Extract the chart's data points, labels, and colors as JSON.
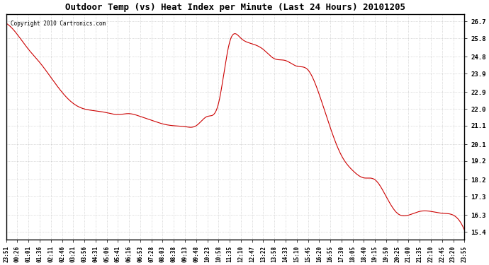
{
  "title": "Outdoor Temp (vs) Heat Index per Minute (Last 24 Hours) 20101205",
  "copyright": "Copyright 2010 Cartronics.com",
  "line_color": "#cc0000",
  "background_color": "#ffffff",
  "grid_color": "#aaaaaa",
  "yticks": [
    15.4,
    16.3,
    17.3,
    18.2,
    19.2,
    20.1,
    21.1,
    22.0,
    22.9,
    23.9,
    24.8,
    25.8,
    26.7
  ],
  "ylim": [
    15.0,
    27.1
  ],
  "xtick_labels": [
    "23:51",
    "00:26",
    "01:01",
    "01:36",
    "02:11",
    "02:46",
    "03:21",
    "03:56",
    "04:31",
    "05:06",
    "05:41",
    "06:16",
    "06:53",
    "07:28",
    "08:03",
    "08:38",
    "09:13",
    "09:48",
    "10:23",
    "10:58",
    "11:35",
    "12:10",
    "12:47",
    "13:22",
    "13:58",
    "14:33",
    "15:10",
    "15:45",
    "16:20",
    "16:55",
    "17:30",
    "18:05",
    "18:40",
    "19:15",
    "19:50",
    "20:25",
    "21:00",
    "21:35",
    "22:10",
    "22:45",
    "23:20",
    "23:55"
  ],
  "data_x": [
    0,
    1,
    2,
    3,
    4,
    5,
    6,
    7,
    8,
    9,
    10,
    11,
    12,
    13,
    14,
    15,
    16,
    17,
    18,
    19,
    20,
    21,
    22,
    23,
    24,
    25,
    26,
    27,
    28,
    29,
    30,
    31,
    32,
    33,
    34,
    35,
    36,
    37,
    38,
    39,
    40,
    41
  ],
  "data_y": [
    26.6,
    26.0,
    25.2,
    24.5,
    23.7,
    22.9,
    22.3,
    22.0,
    21.9,
    21.8,
    21.7,
    21.75,
    21.6,
    21.4,
    21.2,
    21.1,
    21.05,
    21.1,
    21.6,
    22.3,
    25.6,
    25.8,
    25.5,
    25.2,
    24.7,
    24.6,
    24.3,
    24.1,
    22.8,
    21.0,
    19.5,
    18.7,
    18.3,
    18.2,
    17.3,
    16.4,
    16.3,
    16.5,
    16.5,
    16.4,
    16.3,
    15.5
  ]
}
